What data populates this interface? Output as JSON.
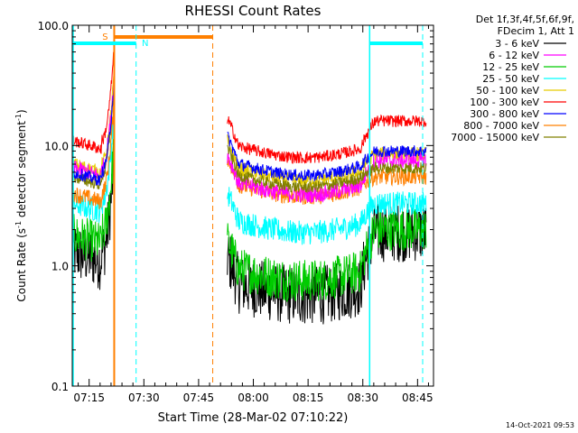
{
  "chart_data": {
    "type": "line",
    "title": "RHESSI Count Rates",
    "xlabel": "Start Time (28-Mar-02 07:10:22)",
    "ylabel_main": "Count Rate (s",
    "ylabel_sup": "-1",
    "ylabel_tail": " detector segment",
    "ylabel_sup2": "-1",
    "ylabel_end": ")",
    "yscale": "log",
    "ylim": [
      0.1,
      100
    ],
    "xlim_minutes": [
      0,
      99
    ],
    "x_tick_labels": [
      "07:15",
      "07:30",
      "07:45",
      "08:00",
      "08:15",
      "08:30",
      "08:45"
    ],
    "x_tick_minutes": [
      4.63,
      19.63,
      34.63,
      49.63,
      64.63,
      79.63,
      94.63
    ],
    "y_ticks": [
      {
        "value": 0.1,
        "label": "0.1"
      },
      {
        "value": 1,
        "label": "1.0"
      },
      {
        "value": 10,
        "label": "10.0"
      },
      {
        "value": 100,
        "label": "100.0"
      }
    ],
    "legend_header": [
      "Det 1f,3f,4f,5f,6f,9f,",
      "FDecim 1, Att 1"
    ],
    "series": [
      {
        "name": "3 - 6 keV",
        "color": "#000000",
        "pre": 1.3,
        "dip": 0.75,
        "post": 1.9,
        "noise": 0.25
      },
      {
        "name": "6 - 12 keV",
        "color": "#ff00ff",
        "pre": 6.5,
        "dip": 5.2,
        "post": 7.5,
        "noise": 0.07
      },
      {
        "name": "12 - 25 keV",
        "color": "#00cc00",
        "pre": 1.8,
        "dip": 1.0,
        "post": 2.0,
        "noise": 0.18
      },
      {
        "name": "25 - 50 keV",
        "color": "#00ffff",
        "pre": 3.3,
        "dip": 2.5,
        "post": 3.3,
        "noise": 0.1
      },
      {
        "name": "50 - 100 keV",
        "color": "#e6cc00",
        "pre": 7.0,
        "dip": 6.8,
        "post": 8.5,
        "noise": 0.06
      },
      {
        "name": "100 - 300 keV",
        "color": "#ff0000",
        "pre": 11.0,
        "dip": 10.5,
        "post": 16.0,
        "noise": 0.05
      },
      {
        "name": "300 - 800 keV",
        "color": "#0000ff",
        "pre": 6.0,
        "dip": 7.5,
        "post": 9.0,
        "noise": 0.05
      },
      {
        "name": "800 - 7000 keV",
        "color": "#ff8000",
        "pre": 4.0,
        "dip": 5.0,
        "post": 5.5,
        "noise": 0.07
      },
      {
        "name": "7000 - 15000 keV",
        "color": "#808000",
        "pre": 5.5,
        "dip": 6.0,
        "post": 6.5,
        "noise": 0.05
      }
    ],
    "data_gap_minutes": [
      11.5,
      42.5
    ],
    "annotations": {
      "attenuator_label": "S",
      "night_label": "N",
      "attenuator_color": "#ff8000",
      "night_color": "#00ffff",
      "attenuator_span_minutes": [
        11.5,
        38.5
      ],
      "night_span_minutes": [
        0,
        17.5
      ],
      "night_span2_minutes": [
        81.5,
        99
      ]
    },
    "grid": false,
    "legend_position": "right"
  },
  "footer": {
    "timestamp": "14-Oct-2021 09:53"
  }
}
